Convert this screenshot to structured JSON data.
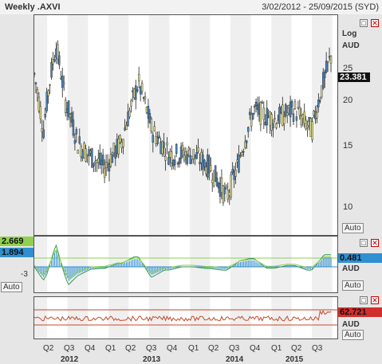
{
  "header": {
    "title": "Weekly .AXVI",
    "date_range": "3/02/2012 - 25/09/2015 (SYD)"
  },
  "main_panel": {
    "scale_label": "Log",
    "currency": "AUD",
    "last_value": "23.381",
    "ticks": [
      "25",
      "20",
      "15",
      "10"
    ],
    "auto_label": "Auto"
  },
  "macd_panel": {
    "value_a": "2.669",
    "value_b": "1.894",
    "value_c": "0.481",
    "neg_tick": "-3",
    "currency": "AUD",
    "auto_label": "Auto"
  },
  "rsi_panel": {
    "value": "62.721",
    "currency": "AUD",
    "auto_label": "Auto"
  },
  "x_axis": {
    "quarters": [
      "Q2",
      "Q3",
      "Q4",
      "Q1",
      "Q2",
      "Q3",
      "Q4",
      "Q1",
      "Q2",
      "Q3",
      "Q4",
      "Q1",
      "Q2",
      "Q3"
    ],
    "years": [
      "2012",
      "2013",
      "2014",
      "2015"
    ]
  },
  "colors": {
    "candle_up": "#4a82b8",
    "candle_down": "#d9d98a",
    "macd_hist": "#2f8fd0",
    "macd_line": "#3a9a55",
    "signal_line": "#8fd14f",
    "rsi_line": "#c84a2a",
    "rsi_bound": "#c84a2a",
    "tag_green": "#8fd14f",
    "tag_blue": "#2f8fd0",
    "tag_red": "#d12e2e"
  },
  "chart_data": {
    "type": "candlestick",
    "title": "Weekly .AXVI",
    "y_scale": "log",
    "ylim": [
      8,
      30
    ],
    "x_start": "2012-02-03",
    "x_end": "2015-09-25",
    "weekly_close_approx": [
      {
        "date": "2012-02-03",
        "value": 21
      },
      {
        "date": "2012-03-15",
        "value": 15
      },
      {
        "date": "2012-05-10",
        "value": 25
      },
      {
        "date": "2012-06-20",
        "value": 18
      },
      {
        "date": "2012-08-15",
        "value": 14
      },
      {
        "date": "2012-10-01",
        "value": 13
      },
      {
        "date": "2012-12-15",
        "value": 12
      },
      {
        "date": "2013-03-01",
        "value": 14
      },
      {
        "date": "2013-05-15",
        "value": 20
      },
      {
        "date": "2013-07-15",
        "value": 15
      },
      {
        "date": "2013-10-01",
        "value": 13
      },
      {
        "date": "2014-01-15",
        "value": 13
      },
      {
        "date": "2014-04-01",
        "value": 12
      },
      {
        "date": "2014-06-15",
        "value": 10
      },
      {
        "date": "2014-08-01",
        "value": 12
      },
      {
        "date": "2014-10-15",
        "value": 17
      },
      {
        "date": "2015-01-15",
        "value": 16
      },
      {
        "date": "2015-04-15",
        "value": 17
      },
      {
        "date": "2015-07-01",
        "value": 15
      },
      {
        "date": "2015-09-25",
        "value": 23.381
      }
    ],
    "indicators": {
      "macd": {
        "last_a": 2.669,
        "last_b": 1.894,
        "last_c": 0.481
      },
      "rsi": {
        "last": 62.721
      }
    }
  }
}
